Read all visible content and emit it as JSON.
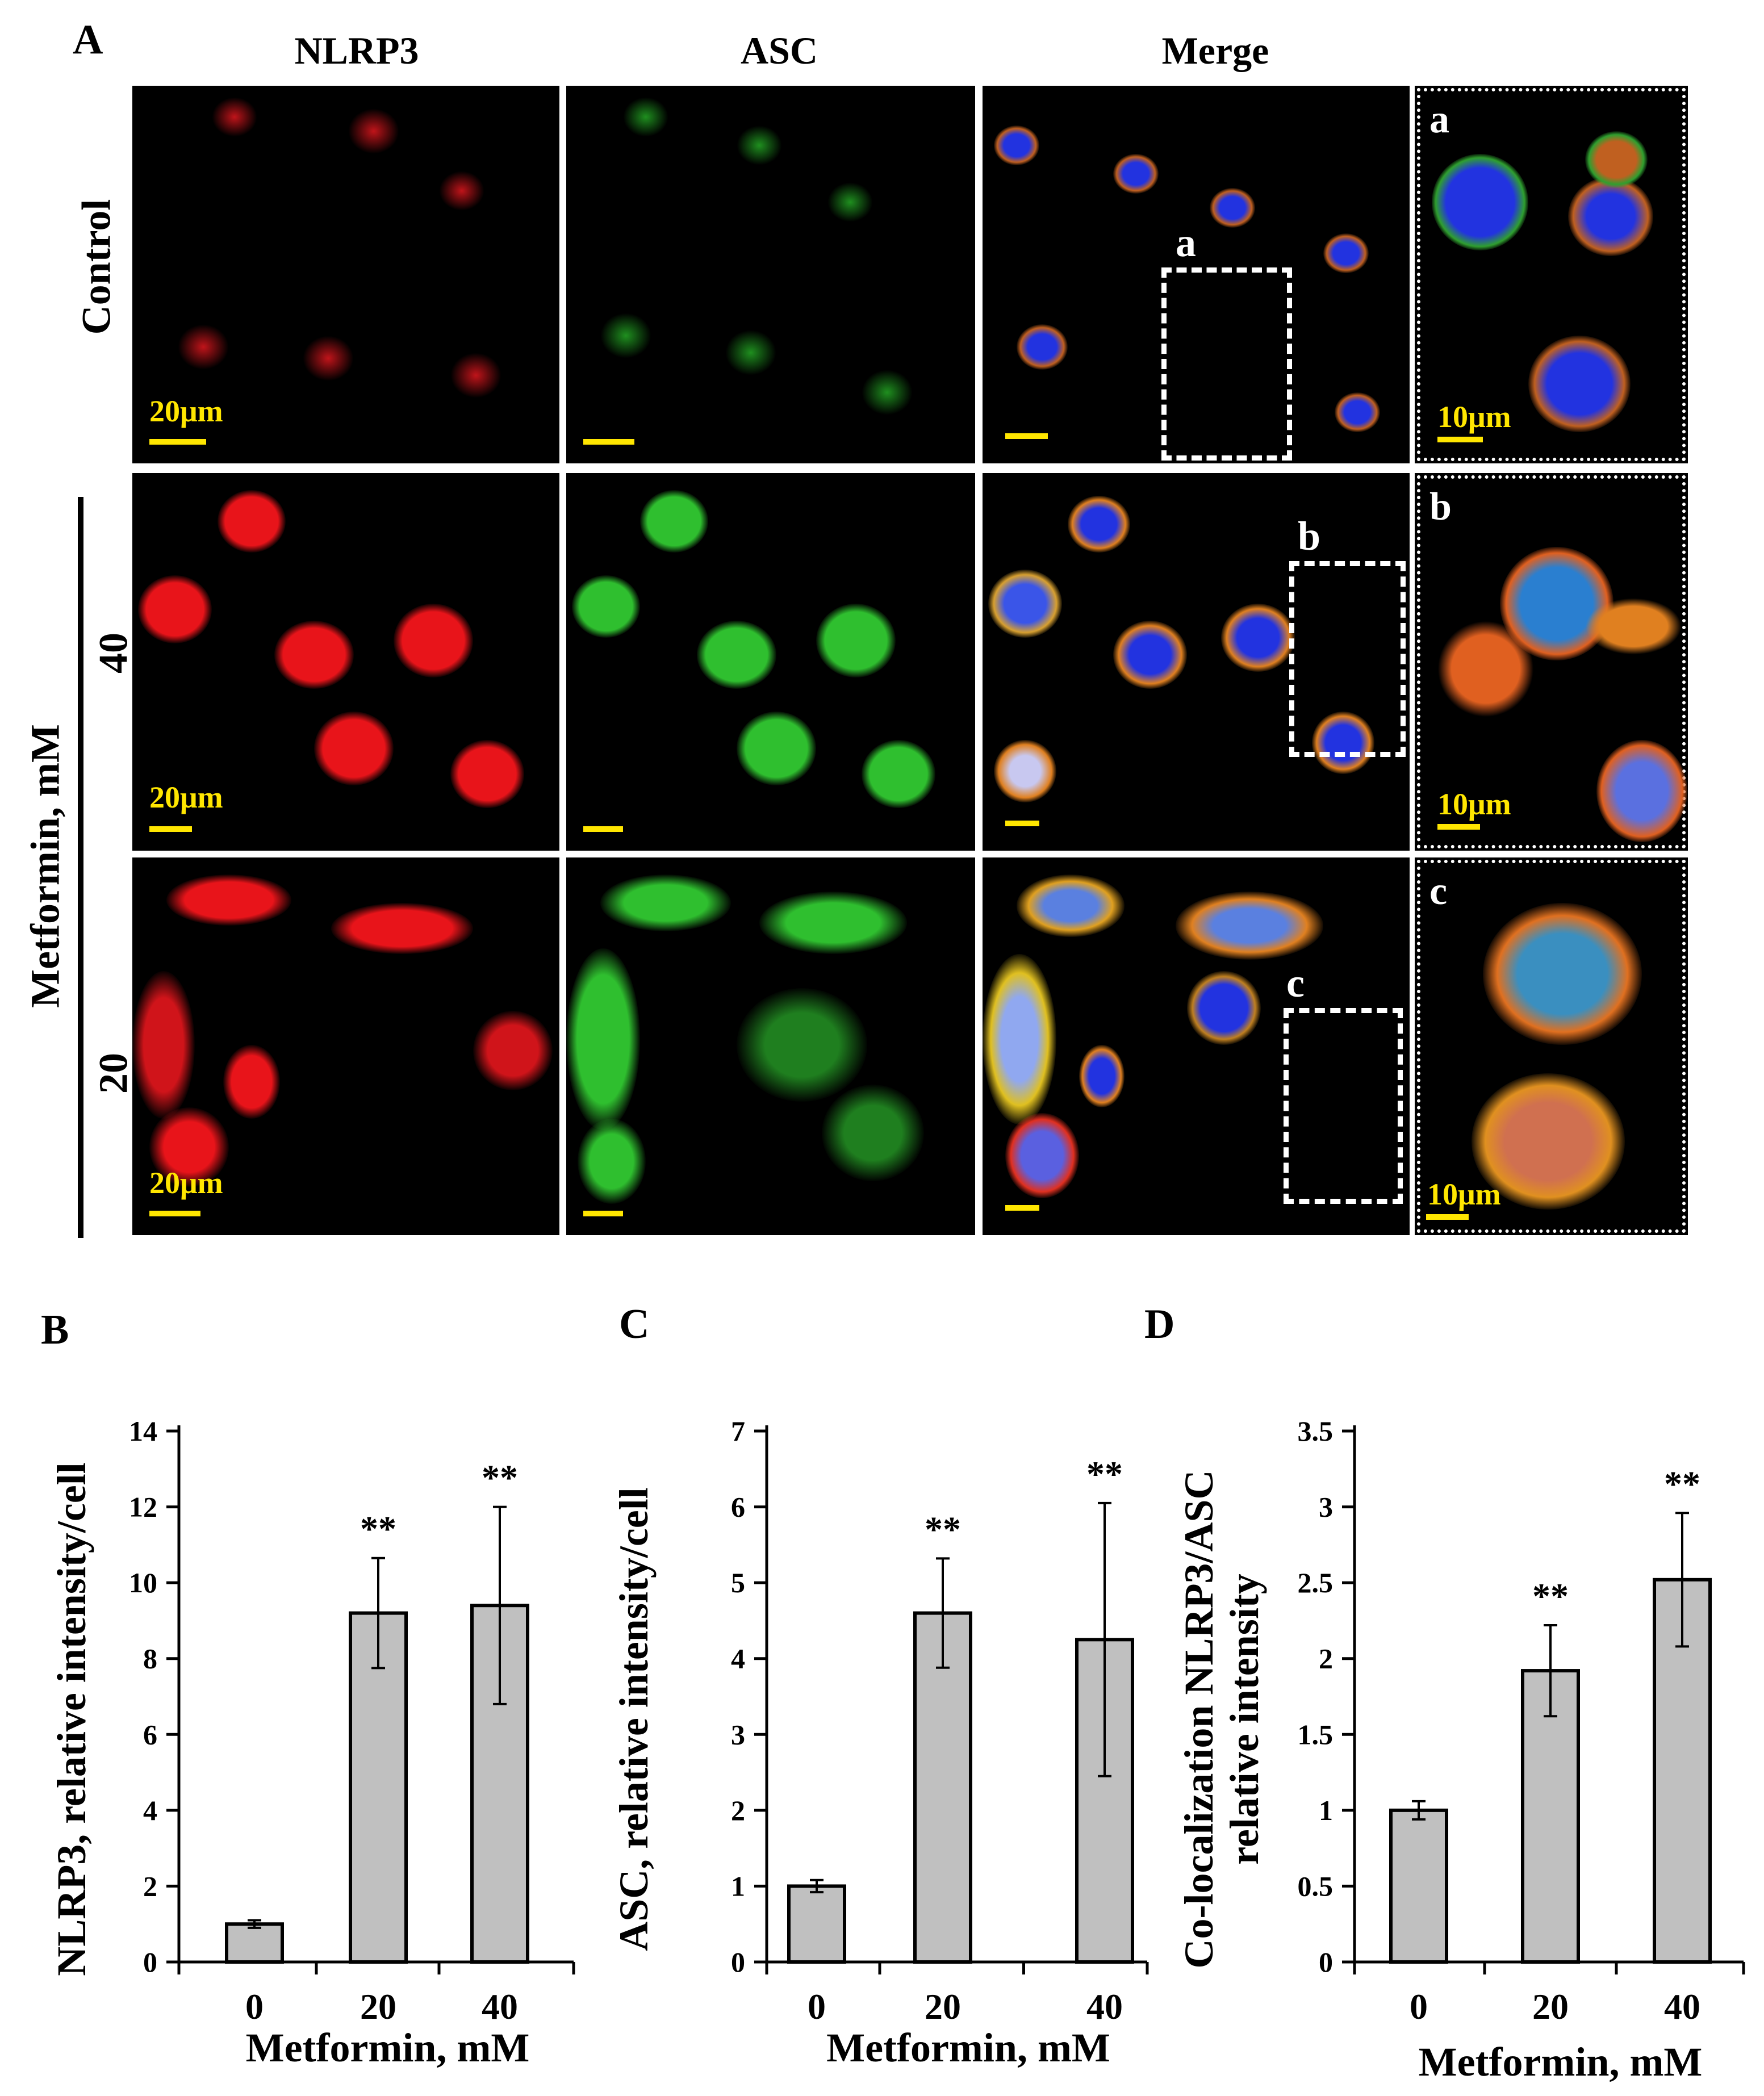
{
  "panel_labels": {
    "A": "A",
    "B": "B",
    "C": "C",
    "D": "D"
  },
  "figure_a": {
    "column_headers": [
      "NLRP3",
      "ASC",
      "Merge"
    ],
    "row_labels": {
      "control": "Control",
      "group": "Metformin, mM",
      "dose_40": "40",
      "dose_20": "20"
    },
    "scale_bars": {
      "main": "20μm",
      "inset": "10μm"
    },
    "inset_labels": [
      "a",
      "b",
      "c"
    ],
    "colors": {
      "nlrp3": "#e8141a",
      "asc": "#2fbf2f",
      "dapi": "#2233e0",
      "scale": "#ffe600"
    }
  },
  "chart_data": [
    {
      "type": "bar",
      "panel": "B",
      "categories": [
        "0",
        "20",
        "40"
      ],
      "values": [
        1.0,
        9.2,
        9.4
      ],
      "errors": [
        0.1,
        1.45,
        2.6
      ],
      "significance": [
        "",
        "**",
        "**"
      ],
      "ylabel": "NLRP3, relative intensity/cell",
      "xlabel": "Metformin, mM",
      "ylim": [
        0,
        14
      ],
      "yticks": [
        0,
        2,
        4,
        6,
        8,
        10,
        12,
        14
      ],
      "ytick_labels": [
        "0",
        "2",
        "4",
        "6",
        "8",
        "10",
        "12",
        "14"
      ],
      "bar_color": "#c0c0c0"
    },
    {
      "type": "bar",
      "panel": "C",
      "categories": [
        "0",
        "20",
        "40"
      ],
      "values": [
        1.0,
        4.6,
        4.25
      ],
      "errors": [
        0.08,
        0.72,
        1.8
      ],
      "significance": [
        "",
        "**",
        "**"
      ],
      "ylabel": "ASC, relative intensity/cell",
      "xlabel": "Metformin, mM",
      "ylim": [
        0,
        7
      ],
      "yticks": [
        0,
        1,
        2,
        3,
        4,
        5,
        6,
        7
      ],
      "ytick_labels": [
        "0",
        "1",
        "2",
        "3",
        "4",
        "5",
        "6",
        "7"
      ],
      "bar_color": "#c0c0c0"
    },
    {
      "type": "bar",
      "panel": "D",
      "categories": [
        "0",
        "20",
        "40"
      ],
      "values": [
        1.0,
        1.92,
        2.52
      ],
      "errors": [
        0.06,
        0.3,
        0.44
      ],
      "significance": [
        "",
        "**",
        "**"
      ],
      "ylabel_lines": [
        "Co-localization NLRP3/ASC",
        "relative intensity"
      ],
      "xlabel": "Metformin, mM",
      "ylim": [
        0,
        3.5
      ],
      "yticks": [
        0,
        0.5,
        1,
        1.5,
        2,
        2.5,
        3,
        3.5
      ],
      "ytick_labels": [
        "0",
        "0.5",
        "1",
        "1.5",
        "2",
        "2.5",
        "3",
        "3.5"
      ],
      "bar_color": "#c0c0c0"
    }
  ]
}
